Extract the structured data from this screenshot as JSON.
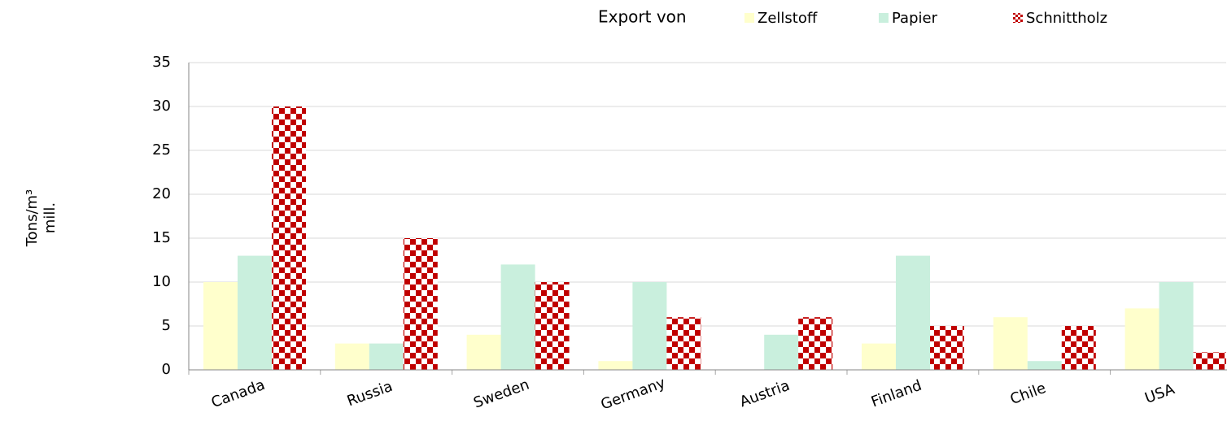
{
  "chart_data": {
    "type": "bar",
    "legend_title": "Export von",
    "y_label": [
      "Tons/m³",
      "mill."
    ],
    "categories": [
      "Canada",
      "Russia",
      "Sweden",
      "Germany",
      "Austria",
      "Finland",
      "Chile",
      "USA"
    ],
    "series": [
      {
        "name": "Zellstoff",
        "color": "#ffffcc",
        "values": [
          10,
          3,
          4,
          1,
          0,
          3,
          6,
          7
        ]
      },
      {
        "name": "Papier",
        "color": "#c9efdd",
        "values": [
          13,
          3,
          12,
          10,
          4,
          13,
          1,
          10
        ]
      },
      {
        "name": "Schnittholz",
        "color": "#c00000",
        "pattern": "checker",
        "values": [
          30,
          15,
          10,
          6,
          6,
          5,
          5,
          2
        ]
      }
    ],
    "ylim": [
      0,
      35
    ],
    "yticks": [
      0,
      5,
      10,
      15,
      20,
      25,
      30,
      35
    ],
    "grid": true
  }
}
